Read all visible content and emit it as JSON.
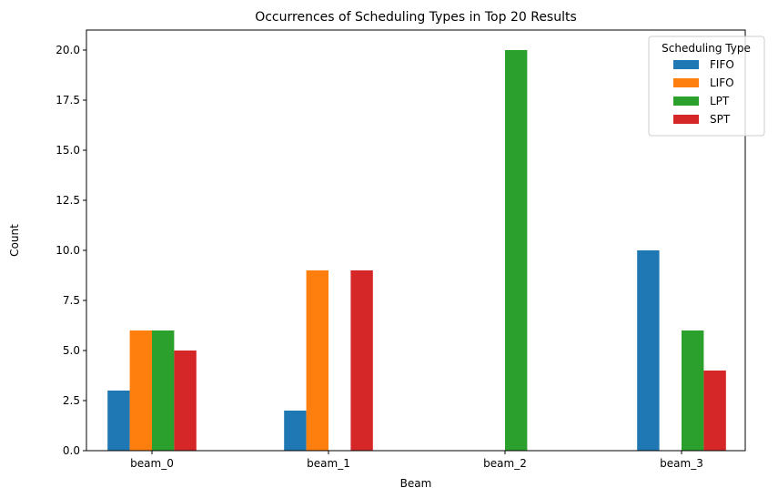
{
  "chart_data": {
    "type": "bar",
    "title": "Occurrences of Scheduling Types in Top 20 Results",
    "xlabel": "Beam",
    "ylabel": "Count",
    "categories": [
      "beam_0",
      "beam_1",
      "beam_2",
      "beam_3"
    ],
    "ylim": [
      0,
      21
    ],
    "yticks": [
      "0.0",
      "2.5",
      "5.0",
      "7.5",
      "10.0",
      "12.5",
      "15.0",
      "17.5",
      "20.0"
    ],
    "grid": false,
    "legend": {
      "title": "Scheduling Type",
      "placement": "top-right"
    },
    "series": [
      {
        "name": "FIFO",
        "color": "#1f77b4",
        "values": [
          3,
          2,
          0,
          10
        ]
      },
      {
        "name": "LIFO",
        "color": "#ff7f0e",
        "values": [
          6,
          9,
          0,
          0
        ]
      },
      {
        "name": "LPT",
        "color": "#2ca02c",
        "values": [
          6,
          0,
          20,
          6
        ]
      },
      {
        "name": "SPT",
        "color": "#d62728",
        "values": [
          5,
          9,
          0,
          4
        ]
      }
    ]
  }
}
